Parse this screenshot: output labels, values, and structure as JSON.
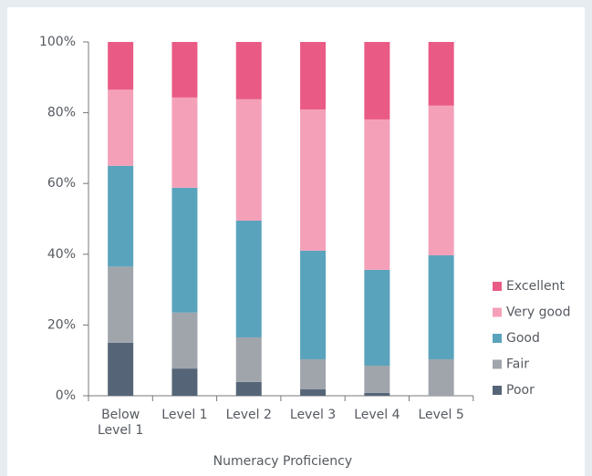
{
  "chart_data": {
    "type": "stacked_bar",
    "x_label": "Numeracy Proficiency",
    "categories": [
      "Below Level 1",
      "Level 1",
      "Level 2",
      "Level 3",
      "Level 4",
      "Level 5"
    ],
    "series": [
      {
        "name": "Poor",
        "color": "#556577",
        "values": [
          15,
          7.7,
          3.9,
          1.8,
          0.8,
          0
        ]
      },
      {
        "name": "Fair",
        "color": "#a0a5ac",
        "values": [
          21.5,
          15.8,
          12.6,
          8.5,
          7.7,
          10.3
        ]
      },
      {
        "name": "Good",
        "color": "#5aa3bd",
        "values": [
          28.5,
          35.3,
          33,
          30.7,
          27.1,
          29.4
        ]
      },
      {
        "name": "Very good",
        "color": "#f4a0b9",
        "values": [
          21.5,
          25.5,
          34.3,
          39.9,
          42.5,
          42.3
        ]
      },
      {
        "name": "Excellent",
        "color": "#e95b85",
        "values": [
          13.5,
          15.7,
          16.2,
          19.1,
          21.9,
          18
        ]
      }
    ],
    "ylim": [
      0,
      100
    ],
    "yticks": [
      {
        "value": 0,
        "label": "0%"
      },
      {
        "value": 20,
        "label": "20%"
      },
      {
        "value": 40,
        "label": "40%"
      },
      {
        "value": 60,
        "label": "60%"
      },
      {
        "value": 80,
        "label": "80%"
      },
      {
        "value": 100,
        "label": "100%"
      }
    ],
    "legend": "right"
  }
}
